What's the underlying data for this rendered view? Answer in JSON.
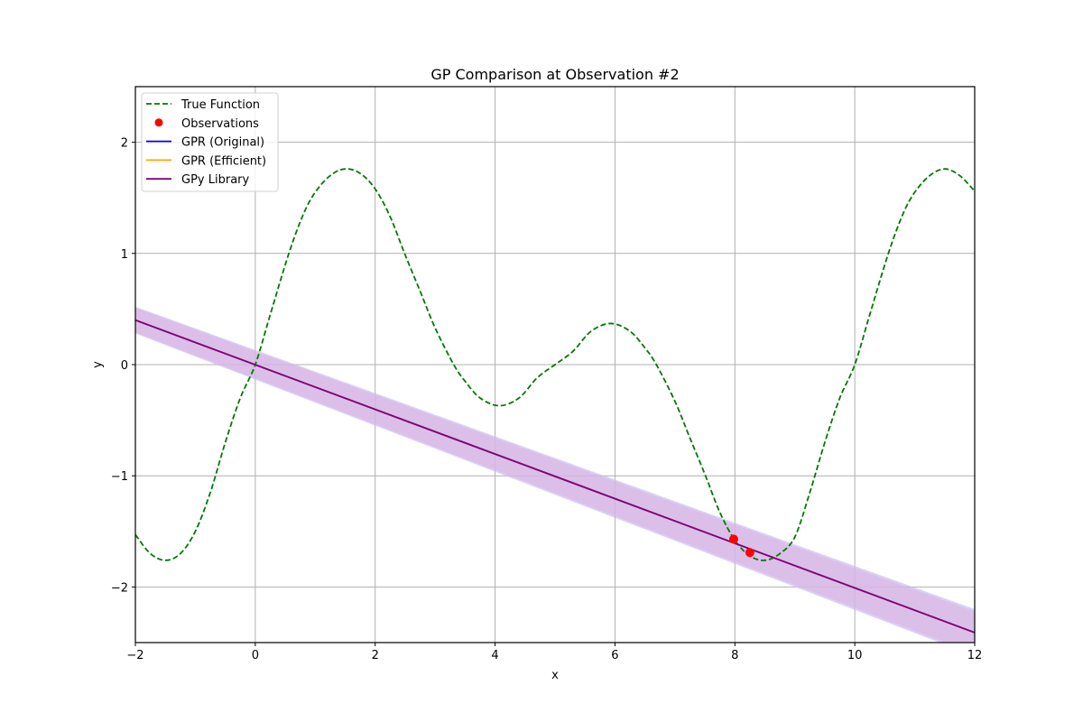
{
  "chart_data": {
    "type": "line",
    "title": "GP Comparison at Observation #2",
    "xlabel": "x",
    "ylabel": "y",
    "xlim": [
      -2,
      12
    ],
    "ylim": [
      -2.5,
      2.5
    ],
    "xticks": [
      -2,
      0,
      2,
      4,
      6,
      8,
      10,
      12
    ],
    "xtick_labels": [
      "−2",
      "0",
      "2",
      "4",
      "6",
      "8",
      "10",
      "12"
    ],
    "yticks": [
      -2,
      -1,
      0,
      1,
      2
    ],
    "ytick_labels": [
      "−2",
      "−1",
      "0",
      "1",
      "2"
    ],
    "grid": true,
    "legend_position": "upper left",
    "series": [
      {
        "name": "True Function",
        "style": "dashed",
        "color": "#007a00",
        "x": [
          -2,
          -1.75,
          -1.5,
          -1.25,
          -1,
          -0.75,
          -0.5,
          -0.25,
          0,
          0.25,
          0.56,
          0.8,
          1,
          1.25,
          1.5,
          1.75,
          2,
          2.25,
          2.49,
          2.75,
          3,
          3.31,
          3.5,
          3.75,
          4.07,
          4.4,
          4.7,
          5,
          5.3,
          5.6,
          5.93,
          6.25,
          6.5,
          6.69,
          7,
          7.25,
          7.51,
          7.75,
          8,
          8.25,
          8.5,
          8.75,
          9,
          9.25,
          9.5,
          9.75,
          10,
          10.25,
          10.56,
          10.8,
          11,
          11.25,
          11.5,
          11.75,
          12
        ],
        "y": [
          -1.53,
          -1.7,
          -1.76,
          -1.7,
          -1.5,
          -1.15,
          -0.7,
          -0.3,
          0.0,
          0.45,
          1.0,
          1.35,
          1.55,
          1.7,
          1.76,
          1.72,
          1.58,
          1.33,
          1.0,
          0.66,
          0.33,
          0.0,
          -0.15,
          -0.3,
          -0.37,
          -0.3,
          -0.12,
          0.0,
          0.12,
          0.3,
          0.37,
          0.3,
          0.15,
          0.0,
          -0.33,
          -0.66,
          -1.0,
          -1.33,
          -1.58,
          -1.72,
          -1.76,
          -1.7,
          -1.55,
          -1.15,
          -0.7,
          -0.3,
          0.0,
          0.45,
          1.0,
          1.35,
          1.55,
          1.7,
          1.76,
          1.7,
          1.56
        ]
      },
      {
        "name": "Observations",
        "style": "scatter",
        "color": "#ff0000",
        "x": [
          7.98,
          8.25
        ],
        "y": [
          -1.57,
          -1.69
        ]
      },
      {
        "name": "GPR (Original)",
        "style": "solid",
        "color": "#0000ff",
        "x": [
          -2,
          12
        ],
        "y": [
          0.4,
          -2.41
        ],
        "band_lower": [
          0.28,
          -2.62
        ],
        "band_upper": [
          0.52,
          -2.2
        ]
      },
      {
        "name": "GPR (Efficient)",
        "style": "solid",
        "color": "#ffa500",
        "x": [
          -2,
          12
        ],
        "y": [
          0.4,
          -2.41
        ],
        "band_lower": [
          0.28,
          -2.62
        ],
        "band_upper": [
          0.52,
          -2.2
        ]
      },
      {
        "name": "GPy Library",
        "style": "solid",
        "color": "#800080",
        "x": [
          -2,
          12
        ],
        "y": [
          0.4,
          -2.41
        ],
        "band_lower": [
          0.29,
          -2.6
        ],
        "band_upper": [
          0.51,
          -2.22
        ]
      }
    ]
  },
  "legend": {
    "items": [
      {
        "label": "True Function",
        "marker": "dashed-line",
        "color": "#007a00"
      },
      {
        "label": "Observations",
        "marker": "dot",
        "color": "#ff0000"
      },
      {
        "label": "GPR (Original)",
        "marker": "line",
        "color": "#0000ff"
      },
      {
        "label": "GPR (Efficient)",
        "marker": "line",
        "color": "#ffa500"
      },
      {
        "label": "GPy Library",
        "marker": "line",
        "color": "#800080"
      }
    ]
  },
  "colors": {
    "band_outer": "#c9bdf2",
    "band_inner": "#dcb0dc",
    "grid": "#b0b0b0",
    "axes": "#000000"
  }
}
